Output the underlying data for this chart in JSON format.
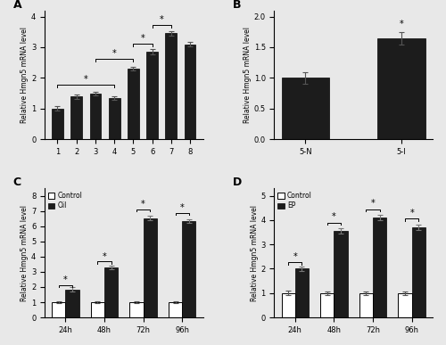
{
  "A": {
    "categories": [
      "1",
      "2",
      "3",
      "4",
      "5",
      "6",
      "7",
      "8"
    ],
    "values": [
      1.0,
      1.4,
      1.5,
      1.35,
      2.3,
      2.85,
      3.45,
      3.1
    ],
    "errors": [
      0.07,
      0.07,
      0.06,
      0.06,
      0.07,
      0.08,
      0.08,
      0.08
    ],
    "ylim": [
      0,
      4.2
    ],
    "yticks": [
      0,
      1,
      2,
      3,
      4
    ],
    "ylabel": "Relative Hmgn5 mRNA level",
    "label": "A",
    "bar_color": "#1c1c1c"
  },
  "B": {
    "categories": [
      "5-N",
      "5-I"
    ],
    "values": [
      1.0,
      1.65
    ],
    "errors": [
      0.1,
      0.1
    ],
    "ylim": [
      0,
      2.1
    ],
    "yticks": [
      0.0,
      0.5,
      1.0,
      1.5,
      2.0
    ],
    "ylabel": "Relative Hmgn5 mRNA level",
    "label": "B",
    "bar_color": "#1c1c1c"
  },
  "C": {
    "categories": [
      "24h",
      "48h",
      "72h",
      "96h"
    ],
    "control_values": [
      1.0,
      1.0,
      1.0,
      1.0
    ],
    "control_errors": [
      0.07,
      0.06,
      0.06,
      0.06
    ],
    "oil_values": [
      1.85,
      3.3,
      6.55,
      6.35
    ],
    "oil_errors": [
      0.12,
      0.13,
      0.13,
      0.13
    ],
    "ylim": [
      0,
      8.5
    ],
    "yticks": [
      0,
      1,
      2,
      3,
      4,
      5,
      6,
      7,
      8
    ],
    "ylabel": "Relative Hmgn5 mRNA level",
    "label": "C",
    "control_color": "#ffffff",
    "oil_color": "#1c1c1c"
  },
  "D": {
    "categories": [
      "24h",
      "48h",
      "72h",
      "96h"
    ],
    "control_values": [
      1.0,
      1.0,
      1.0,
      1.0
    ],
    "control_errors": [
      0.09,
      0.08,
      0.08,
      0.07
    ],
    "ep_values": [
      2.0,
      3.55,
      4.1,
      3.7
    ],
    "ep_errors": [
      0.1,
      0.12,
      0.11,
      0.1
    ],
    "ylim": [
      0,
      5.3
    ],
    "yticks": [
      0,
      1,
      2,
      3,
      4,
      5
    ],
    "ylabel": "Relative Hmgn5 mRNA level",
    "label": "D",
    "control_color": "#ffffff",
    "ep_color": "#1c1c1c"
  },
  "fig_bg": "#e8e8e8",
  "axes_bg": "#e8e8e8"
}
